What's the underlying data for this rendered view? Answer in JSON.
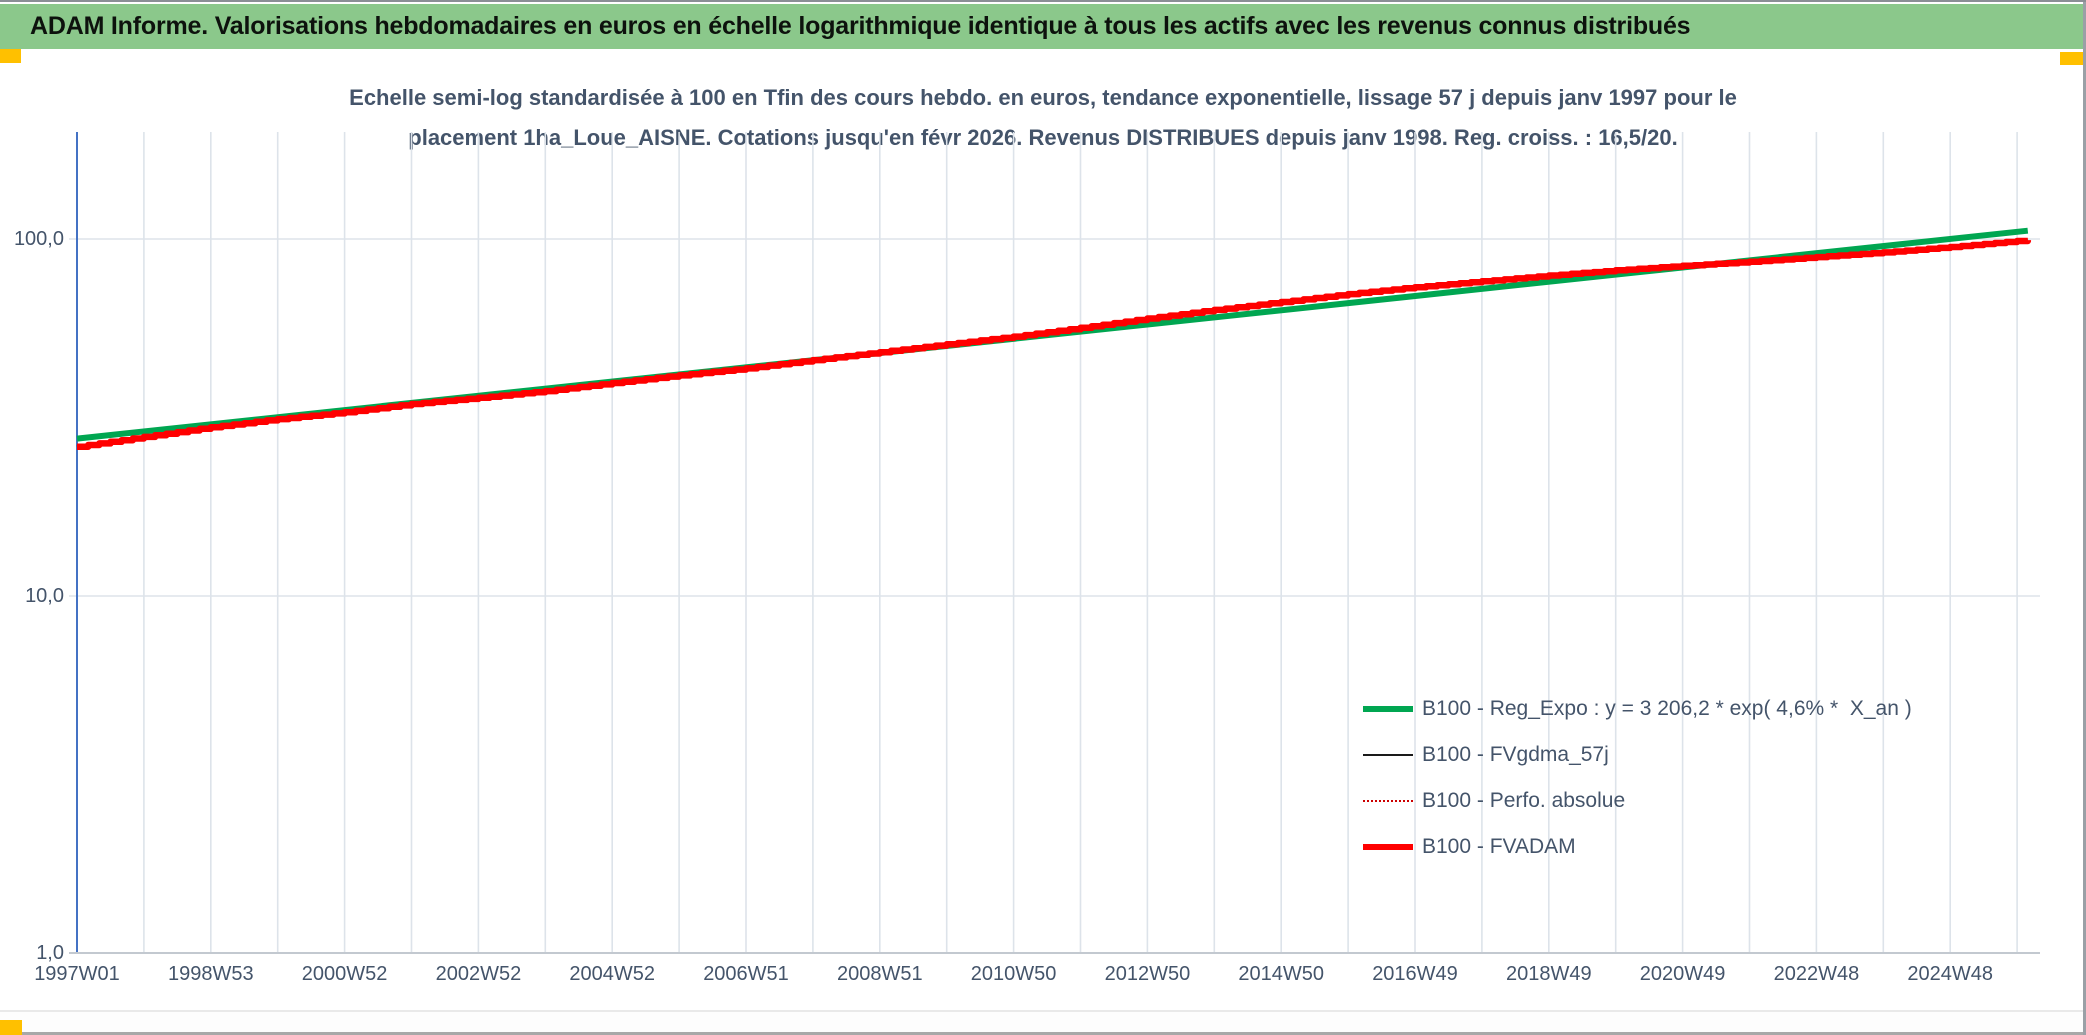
{
  "header": {
    "title": "ADAM Informe. Valorisations hebdomadaires en euros en échelle logarithmique identique à tous les actifs avec les revenus connus distribués"
  },
  "colors": {
    "header_bg": "#8BC88B",
    "accent": "#FFC000",
    "ink": "#44546A",
    "grid": "#DDE3EA",
    "y_axis_line": "#4472C4",
    "x_axis_line": "#C3C9D0"
  },
  "chart_data": {
    "type": "line",
    "title_line1": "Echelle semi-log standardisée à 100 en Tfin des cours hebdo. en euros, tendance exponentielle, lissage 57 j depuis janv 1997 pour le",
    "title_line2": "placement 1ha_Loue_AISNE. Cotations jusqu'en févr 2026. Revenus DISTRIBUES depuis janv 1998. Reg. croiss. : 16,5/20.",
    "x_axis": {
      "unit": "ISO-week, x stored as years since 1997W01",
      "ticks": [
        {
          "label": "1997W01",
          "year_offset": 0
        },
        {
          "label": "1998W53",
          "year_offset": 2
        },
        {
          "label": "2000W52",
          "year_offset": 4
        },
        {
          "label": "2002W52",
          "year_offset": 6
        },
        {
          "label": "2004W52",
          "year_offset": 8
        },
        {
          "label": "2006W51",
          "year_offset": 10
        },
        {
          "label": "2008W51",
          "year_offset": 12
        },
        {
          "label": "2010W50",
          "year_offset": 14
        },
        {
          "label": "2012W50",
          "year_offset": 16
        },
        {
          "label": "2014W50",
          "year_offset": 18
        },
        {
          "label": "2016W49",
          "year_offset": 20
        },
        {
          "label": "2018W49",
          "year_offset": 22
        },
        {
          "label": "2020W49",
          "year_offset": 24
        },
        {
          "label": "2022W48",
          "year_offset": 26
        },
        {
          "label": "2024W48",
          "year_offset": 28
        }
      ]
    },
    "y_axis": {
      "scale": "log10",
      "range": [
        1,
        200
      ],
      "ticks": [
        {
          "label": "100,0",
          "value": 100
        },
        {
          "label": "10,0",
          "value": 10
        },
        {
          "label": "1,0",
          "value": 1
        }
      ]
    },
    "legend_position": "lower-right-inside",
    "series": [
      {
        "id": "reg-expo",
        "name": "B100 - Reg_Expo : y = 3 206,2 * exp( 4,6% *  X_an )",
        "color": "#00A651",
        "width": 6,
        "style": "solid",
        "interp": "linear",
        "points": [
          [
            0,
            27.6
          ],
          [
            29.16,
            105.5
          ]
        ]
      },
      {
        "id": "fvgdma-57j",
        "name": "B100 - FVgdma_57j",
        "color": "#1A1A1A",
        "width": 2.5,
        "style": "solid",
        "interp": "smooth",
        "points": [
          [
            0,
            26.2
          ],
          [
            1,
            27.9
          ],
          [
            2,
            29.7
          ],
          [
            3,
            31.3
          ],
          [
            4,
            32.7
          ],
          [
            5,
            34.5
          ],
          [
            6,
            35.9
          ],
          [
            7,
            37.5
          ],
          [
            8,
            39.5
          ],
          [
            9,
            41.5
          ],
          [
            10,
            43.4
          ],
          [
            11,
            45.8
          ],
          [
            12,
            48.2
          ],
          [
            13,
            50.7
          ],
          [
            14,
            53.3
          ],
          [
            15,
            56.4
          ],
          [
            16,
            59.9
          ],
          [
            17,
            63.3
          ],
          [
            18,
            66.6
          ],
          [
            19,
            70.1
          ],
          [
            20,
            73.3
          ],
          [
            21,
            76.1
          ],
          [
            22,
            79.0
          ],
          [
            23,
            81.7
          ],
          [
            24,
            84.1
          ],
          [
            25,
            86.3
          ],
          [
            26,
            89.0
          ],
          [
            27,
            91.7
          ],
          [
            28,
            95.0
          ],
          [
            29,
            98.7
          ],
          [
            29.16,
            99.3
          ]
        ]
      },
      {
        "id": "perfo-absolue",
        "name": "B100 - Perfo. absolue",
        "color": "#CC0000",
        "width": 2.5,
        "style": "dotted",
        "interp": "smooth",
        "points": [
          [
            0,
            26.2
          ],
          [
            1,
            27.9
          ],
          [
            2,
            29.7
          ],
          [
            3,
            31.3
          ],
          [
            4,
            32.7
          ],
          [
            5,
            34.5
          ],
          [
            6,
            35.9
          ],
          [
            7,
            37.5
          ],
          [
            8,
            39.5
          ],
          [
            9,
            41.5
          ],
          [
            10,
            43.4
          ],
          [
            11,
            45.8
          ],
          [
            12,
            48.2
          ],
          [
            13,
            50.7
          ],
          [
            14,
            53.3
          ],
          [
            15,
            56.4
          ],
          [
            16,
            59.9
          ],
          [
            17,
            63.3
          ],
          [
            18,
            66.6
          ],
          [
            19,
            70.1
          ],
          [
            20,
            73.3
          ],
          [
            21,
            76.1
          ],
          [
            22,
            79.0
          ],
          [
            23,
            81.7
          ],
          [
            24,
            84.1
          ],
          [
            25,
            86.3
          ],
          [
            26,
            89.0
          ],
          [
            27,
            91.7
          ],
          [
            28,
            95.0
          ],
          [
            29,
            98.7
          ],
          [
            29.16,
            99.3
          ]
        ]
      },
      {
        "id": "fvadam",
        "name": "B100 - FVADAM",
        "color": "#FF0000",
        "width": 6.5,
        "style": "solid",
        "interp": "step",
        "points": [
          [
            0,
            26.2
          ],
          [
            1,
            27.9
          ],
          [
            2,
            29.7
          ],
          [
            3,
            31.3
          ],
          [
            4,
            32.7
          ],
          [
            5,
            34.5
          ],
          [
            6,
            35.9
          ],
          [
            7,
            37.5
          ],
          [
            8,
            39.5
          ],
          [
            9,
            41.5
          ],
          [
            10,
            43.4
          ],
          [
            11,
            45.8
          ],
          [
            12,
            48.2
          ],
          [
            13,
            50.7
          ],
          [
            14,
            53.3
          ],
          [
            15,
            56.4
          ],
          [
            16,
            59.9
          ],
          [
            17,
            63.3
          ],
          [
            18,
            66.6
          ],
          [
            19,
            70.1
          ],
          [
            20,
            73.3
          ],
          [
            21,
            76.1
          ],
          [
            22,
            79.0
          ],
          [
            23,
            81.7
          ],
          [
            24,
            84.1
          ],
          [
            25,
            86.3
          ],
          [
            26,
            89.0
          ],
          [
            27,
            91.7
          ],
          [
            28,
            95.0
          ],
          [
            29,
            98.7
          ],
          [
            29.16,
            99.3
          ]
        ]
      }
    ]
  }
}
